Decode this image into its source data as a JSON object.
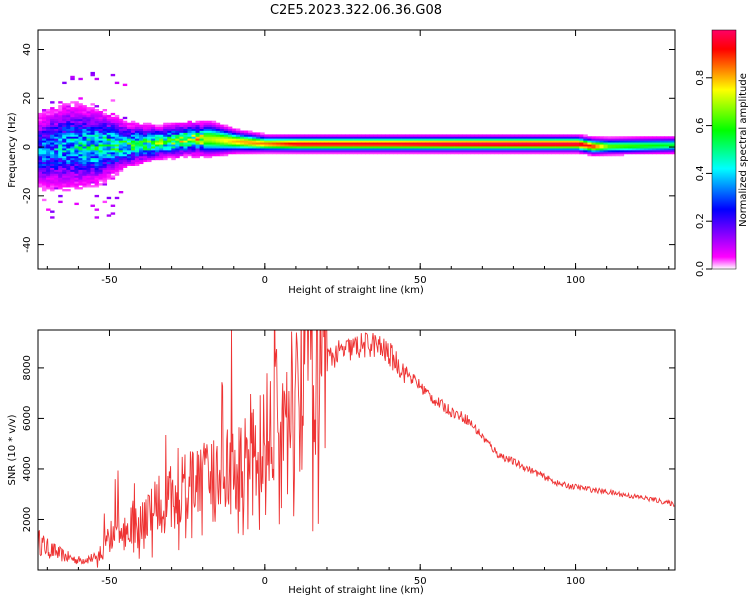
{
  "figure": {
    "title": "C2E5.2023.322.06.36.G08"
  },
  "chart_data": [
    {
      "type": "heatmap",
      "xlabel": "Height of straight line (km)",
      "ylabel": "Frequency (Hz)",
      "xlim": [
        -73,
        132
      ],
      "ylim": [
        -50,
        48
      ],
      "xticks": [
        -50,
        0,
        50,
        100
      ],
      "yticks": [
        -40,
        -20,
        0,
        20,
        40
      ],
      "xtick_labels": [
        "-50",
        "0",
        "50",
        "100"
      ],
      "ytick_labels": [
        "-40",
        "-20",
        "0",
        "20",
        "40"
      ],
      "colorbar": {
        "label": "Normalized spectral amplitude",
        "range": [
          0,
          1
        ],
        "ticks": [
          0,
          0.2,
          0.4,
          0.6,
          0.8
        ],
        "tick_labels": [
          "0.0",
          "0.2",
          "0.4",
          "0.6",
          "0.8"
        ],
        "colormap": [
          "#ffffff",
          "#ff00ff",
          "#0000ff",
          "#00ffff",
          "#00ff00",
          "#ffff00",
          "#ff0000"
        ]
      },
      "ridge": {
        "x": [
          -73,
          -65,
          -55,
          -45,
          -35,
          -25,
          -18,
          -10,
          0,
          10,
          20,
          40,
          60,
          80,
          100,
          105,
          110,
          132
        ],
        "freq": [
          -2,
          0,
          0,
          0.5,
          1.5,
          3,
          3,
          2,
          1,
          1,
          1,
          1,
          1,
          1,
          1,
          0,
          0,
          0.5
        ],
        "spread": [
          7,
          8,
          7,
          4,
          3,
          3,
          3,
          2,
          1.5,
          1.5,
          1.5,
          1.5,
          1.5,
          1.5,
          1.5,
          1.5,
          1.5,
          1.5
        ],
        "peak": [
          0.35,
          0.4,
          0.5,
          0.55,
          0.6,
          0.7,
          0.7,
          0.8,
          0.85,
          0.95,
          0.95,
          0.95,
          0.98,
          0.99,
          0.98,
          0.9,
          0.65,
          0.55
        ]
      }
    },
    {
      "type": "line",
      "xlabel": "Height of straight line (km)",
      "ylabel": "SNR (10 * v/v)",
      "xlim": [
        -73,
        132
      ],
      "ylim": [
        0,
        9500
      ],
      "xticks": [
        -50,
        0,
        50,
        100
      ],
      "yticks": [
        2000,
        4000,
        6000,
        8000
      ],
      "xtick_labels": [
        "-50",
        "0",
        "50",
        "100"
      ],
      "ytick_labels": [
        "2000",
        "4000",
        "6000",
        "8000"
      ],
      "line_color": "#ee3333",
      "series": [
        {
          "x": [
            -73,
            -70,
            -65,
            -60,
            -55,
            -52,
            -50,
            -45,
            -40,
            -35,
            -30,
            -25,
            -20,
            -15,
            -10,
            -5,
            0,
            5,
            10,
            15,
            20,
            25,
            30,
            35,
            40,
            45,
            50,
            55,
            60,
            65,
            70,
            75,
            80,
            85,
            90,
            95,
            100,
            105,
            110,
            115,
            120,
            125,
            132
          ],
          "y": [
            1200,
            900,
            600,
            400,
            500,
            800,
            1400,
            1800,
            2200,
            2600,
            3000,
            3400,
            3600,
            3800,
            4200,
            5000,
            5600,
            6500,
            7200,
            7900,
            8400,
            8700,
            8900,
            9000,
            8600,
            7900,
            7300,
            6700,
            6300,
            6000,
            5300,
            4600,
            4300,
            4000,
            3700,
            3400,
            3300,
            3200,
            3100,
            3000,
            2900,
            2800,
            2600
          ]
        }
      ]
    }
  ]
}
